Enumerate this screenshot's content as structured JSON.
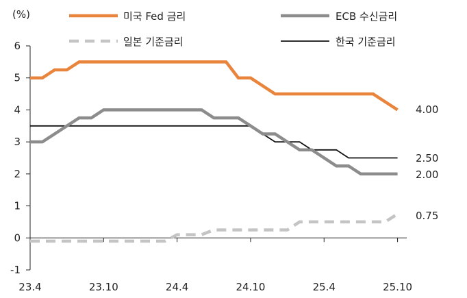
{
  "chart_data": {
    "type": "line",
    "unit_label": "(%)",
    "x_ticks": [
      "23.4",
      "23.10",
      "24.4",
      "24.10",
      "25.4",
      "25.10"
    ],
    "ylim": [
      -1,
      6
    ],
    "y_ticks": [
      "6",
      "5",
      "4",
      "3",
      "2",
      "1",
      "0",
      "-1"
    ],
    "legend_position": "top",
    "grid": false,
    "series": [
      {
        "name": "미국 Fed 금리",
        "color": "#E8843C",
        "style": "solid-thick",
        "end_label": "4.00",
        "points": [
          [
            "23.4",
            5.0
          ],
          [
            "23.5",
            5.0
          ],
          [
            "23.6",
            5.25
          ],
          [
            "23.7",
            5.25
          ],
          [
            "23.8",
            5.5
          ],
          [
            "24.8",
            5.5
          ],
          [
            "24.9",
            5.0
          ],
          [
            "24.10",
            5.0
          ],
          [
            "24.11",
            4.75
          ],
          [
            "24.12",
            4.5
          ],
          [
            "25.8",
            4.5
          ],
          [
            "25.9",
            4.25
          ],
          [
            "25.10",
            4.0
          ]
        ]
      },
      {
        "name": "ECB 수신금리",
        "color": "#8C8C8C",
        "style": "solid-thick",
        "end_label": "2.00",
        "points": [
          [
            "23.4",
            3.0
          ],
          [
            "23.5",
            3.0
          ],
          [
            "23.6",
            3.25
          ],
          [
            "23.7",
            3.5
          ],
          [
            "23.8",
            3.75
          ],
          [
            "23.9",
            3.75
          ],
          [
            "23.10",
            4.0
          ],
          [
            "24.6",
            4.0
          ],
          [
            "24.7",
            3.75
          ],
          [
            "24.9",
            3.75
          ],
          [
            "24.10",
            3.5
          ],
          [
            "24.11",
            3.25
          ],
          [
            "24.12",
            3.25
          ],
          [
            "25.1",
            3.0
          ],
          [
            "25.2",
            2.75
          ],
          [
            "25.3",
            2.75
          ],
          [
            "25.4",
            2.5
          ],
          [
            "25.5",
            2.25
          ],
          [
            "25.6",
            2.25
          ],
          [
            "25.7",
            2.0
          ],
          [
            "25.10",
            2.0
          ]
        ]
      },
      {
        "name": "일본 기준금리",
        "color": "#C4C4C4",
        "style": "dashed",
        "end_label": "0.75",
        "points": [
          [
            "23.4",
            -0.1
          ],
          [
            "24.3",
            -0.1
          ],
          [
            "24.4",
            0.1
          ],
          [
            "24.6",
            0.1
          ],
          [
            "24.7",
            0.25
          ],
          [
            "25.1",
            0.25
          ],
          [
            "25.2",
            0.5
          ],
          [
            "25.9",
            0.5
          ],
          [
            "25.10",
            0.75
          ]
        ]
      },
      {
        "name": "한국 기준금리",
        "color": "#111111",
        "style": "solid-thin",
        "end_label": "2.50",
        "points": [
          [
            "23.4",
            3.5
          ],
          [
            "24.10",
            3.5
          ],
          [
            "24.11",
            3.25
          ],
          [
            "24.12",
            3.0
          ],
          [
            "25.2",
            3.0
          ],
          [
            "25.3",
            2.75
          ],
          [
            "25.5",
            2.75
          ],
          [
            "25.6",
            2.5
          ],
          [
            "25.10",
            2.5
          ]
        ]
      }
    ]
  }
}
